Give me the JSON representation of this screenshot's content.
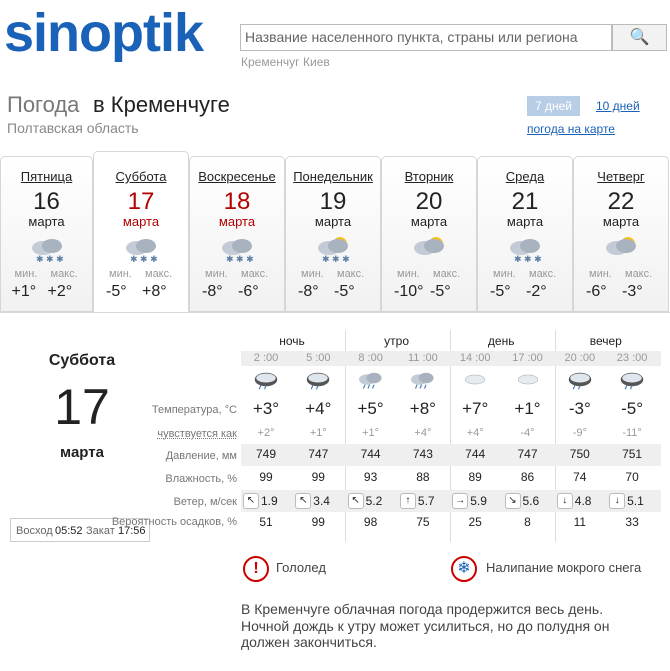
{
  "header": {
    "logo": "sinoptik",
    "search_placeholder": "Название населенного пункта, страны или региона",
    "recent": [
      "Кременчуг",
      "Киев"
    ]
  },
  "title": {
    "prefix": "Погода",
    "place": "в Кременчуге",
    "region": "Полтавская область"
  },
  "tabs": {
    "week": "7 дней",
    "ten_days": "10 дней",
    "map": "погода на карте"
  },
  "min_label": "мин.",
  "max_label": "макс.",
  "days": [
    {
      "weekday": "Пятница",
      "date": "16",
      "month": "марта",
      "min": "+1°",
      "max": "+2°"
    },
    {
      "weekday": "Суббота",
      "date": "17",
      "month": "марта",
      "min": "-5°",
      "max": "+8°"
    },
    {
      "weekday": "Воскресенье",
      "date": "18",
      "month": "марта",
      "min": "-8°",
      "max": "-6°"
    },
    {
      "weekday": "Понедельник",
      "date": "19",
      "month": "марта",
      "min": "-8°",
      "max": "-5°"
    },
    {
      "weekday": "Вторник",
      "date": "20",
      "month": "марта",
      "min": "-10°",
      "max": "-5°"
    },
    {
      "weekday": "Среда",
      "date": "21",
      "month": "марта",
      "min": "-5°",
      "max": "-2°"
    },
    {
      "weekday": "Четверг",
      "date": "22",
      "month": "марта",
      "min": "-6°",
      "max": "-3°"
    }
  ],
  "detail": {
    "weekday": "Суббота",
    "date": "17",
    "month": "марта",
    "sunrise_label": "Восход",
    "sunrise": "05:52",
    "sunset_label": "Закат",
    "sunset": "17:56",
    "periods": [
      "ночь",
      "утро",
      "день",
      "вечер"
    ],
    "times": [
      "2 :00",
      "5 :00",
      "8 :00",
      "11 :00",
      "14 :00",
      "17 :00",
      "20 :00",
      "23 :00"
    ],
    "rows": [
      {
        "label": "Температура, °C",
        "values": [
          "+3°",
          "+4°",
          "+5°",
          "+8°",
          "+7°",
          "+1°",
          "-3°",
          "-5°"
        ]
      },
      {
        "label": "чувствуется как",
        "values": [
          "+2°",
          "+1°",
          "+1°",
          "+4°",
          "+4°",
          "-4°",
          "-9°",
          "-11°"
        ]
      },
      {
        "label": "Давление, мм",
        "values": [
          "749",
          "747",
          "744",
          "743",
          "744",
          "747",
          "750",
          "751"
        ]
      },
      {
        "label": "Влажность, %",
        "values": [
          "99",
          "99",
          "93",
          "88",
          "89",
          "86",
          "74",
          "70"
        ]
      },
      {
        "label": "Ветер, м/сек",
        "wind_dir": [
          "↖",
          "↖",
          "↖",
          "↑",
          "→",
          "↘",
          "↓",
          "↓"
        ],
        "values": [
          "1.9",
          "3.4",
          "5.2",
          "5.7",
          "5.9",
          "5.6",
          "4.8",
          "5.1"
        ]
      },
      {
        "label": "Вероятность осадков, %",
        "values": [
          "51",
          "99",
          "98",
          "75",
          "25",
          "8",
          "11",
          "33"
        ]
      }
    ],
    "warnings": [
      "Гололед",
      "Налипание мокрого снега"
    ],
    "description": [
      "В Кременчуге облачная погода продержится весь день.",
      "Ночной дождь к утру может усилиться, но до полудня он",
      "должен закончиться."
    ]
  }
}
